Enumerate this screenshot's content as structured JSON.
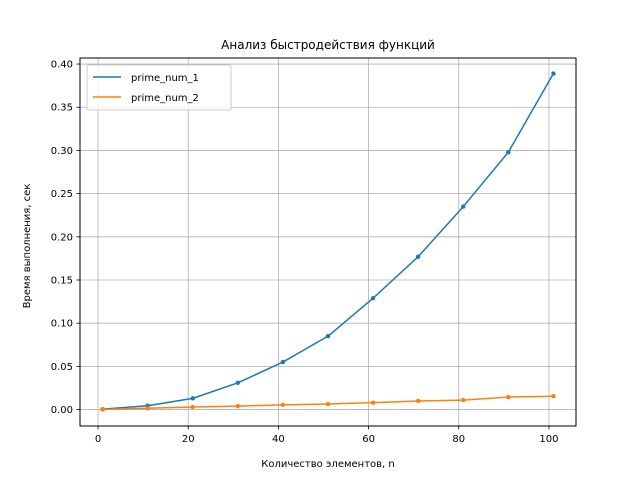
{
  "chart_data": {
    "type": "line",
    "title": "Анализ быстродействия функций",
    "xlabel": "Количество элементов, n",
    "ylabel": "Время выполнения, сек",
    "x": [
      1,
      11,
      21,
      31,
      41,
      51,
      61,
      71,
      81,
      91,
      101
    ],
    "xlim": [
      -4.0,
      106.0
    ],
    "ylim": [
      -0.019,
      0.407
    ],
    "xticks": [
      0,
      20,
      40,
      60,
      80,
      100
    ],
    "yticks": [
      0.0,
      0.05,
      0.1,
      0.15,
      0.2,
      0.25,
      0.3,
      0.35,
      0.4
    ],
    "xtick_labels": [
      "0",
      "20",
      "40",
      "60",
      "80",
      "100"
    ],
    "ytick_labels": [
      "0.00",
      "0.05",
      "0.10",
      "0.15",
      "0.20",
      "0.25",
      "0.30",
      "0.35",
      "0.40"
    ],
    "grid": true,
    "legend_position": "top-left",
    "series": [
      {
        "name": "prime_num_1",
        "color": "#1f77b4",
        "values": [
          0.0005,
          0.0045,
          0.013,
          0.031,
          0.055,
          0.085,
          0.129,
          0.177,
          0.235,
          0.298,
          0.389
        ]
      },
      {
        "name": "prime_num_2",
        "color": "#ff7f0e",
        "values": [
          0.0002,
          0.0015,
          0.003,
          0.004,
          0.0055,
          0.0065,
          0.008,
          0.01,
          0.011,
          0.0145,
          0.0155
        ]
      }
    ]
  }
}
